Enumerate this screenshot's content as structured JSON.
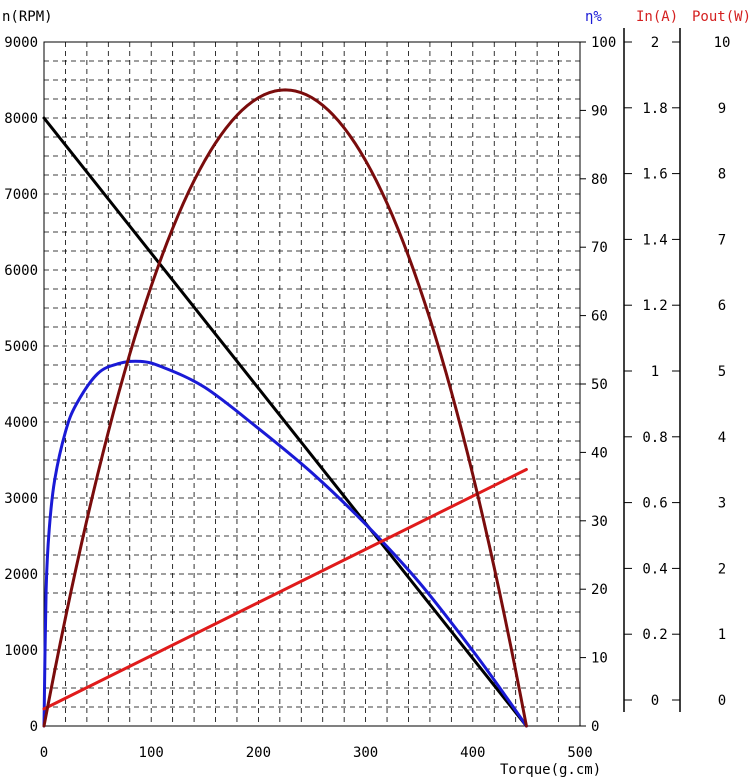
{
  "chart_data": {
    "type": "line",
    "title": "",
    "xlabel": "Torque(g.cm)",
    "xlim": [
      0,
      500
    ],
    "x_ticks": [
      0,
      100,
      200,
      300,
      400,
      500
    ],
    "grid": true,
    "axes": {
      "speed": {
        "label": "n(RPM)",
        "range": [
          0,
          9000
        ],
        "ticks": [
          "0",
          "1000",
          "2000",
          "3000",
          "4000",
          "5000",
          "6000",
          "7000",
          "8000",
          "9000"
        ],
        "color": "#000000"
      },
      "eff": {
        "label": "η%",
        "range": [
          0,
          100
        ],
        "ticks": [
          "0",
          "10",
          "20",
          "30",
          "40",
          "50",
          "60",
          "70",
          "80",
          "90",
          "100"
        ],
        "color": "#0000cc"
      },
      "current": {
        "label": "In(A)",
        "range": [
          0,
          2
        ],
        "ticks": [
          "0",
          "0.2",
          "0.4",
          "0.6",
          "0.8",
          "1",
          "1.2",
          "1.4",
          "1.6",
          "1.8",
          "2"
        ],
        "color": "#d42020"
      },
      "power": {
        "label": "Pout(W)",
        "range": [
          0,
          10
        ],
        "ticks": [
          "0",
          "1",
          "2",
          "3",
          "4",
          "5",
          "6",
          "7",
          "8",
          "9",
          "10"
        ],
        "color": "#d42020"
      }
    },
    "series": [
      {
        "name": "n(RPM)",
        "axis": "speed",
        "color": "#000000",
        "x": [
          0,
          450
        ],
        "y": [
          8000,
          0
        ]
      },
      {
        "name": "η%",
        "axis": "eff",
        "color": "#1a1ad6",
        "x": [
          0,
          2,
          5,
          10,
          20,
          30,
          50,
          70,
          90,
          110,
          150,
          200,
          250,
          300,
          350,
          400,
          430,
          450
        ],
        "y": [
          0,
          20,
          29,
          36,
          43,
          47,
          51.5,
          53,
          53.3,
          52.5,
          49.5,
          43.5,
          37,
          29.5,
          21,
          11,
          4.5,
          0
        ]
      },
      {
        "name": "In(A)",
        "axis": "current",
        "color": "#e01b1b",
        "x": [
          0,
          450
        ],
        "y": [
          0.05,
          0.75
        ]
      },
      {
        "name": "Pout(W)",
        "axis": "power",
        "color": "#7a0c0c",
        "x": [
          0,
          450
        ],
        "peak_x": 225,
        "peak_y": 9.3
      }
    ]
  }
}
